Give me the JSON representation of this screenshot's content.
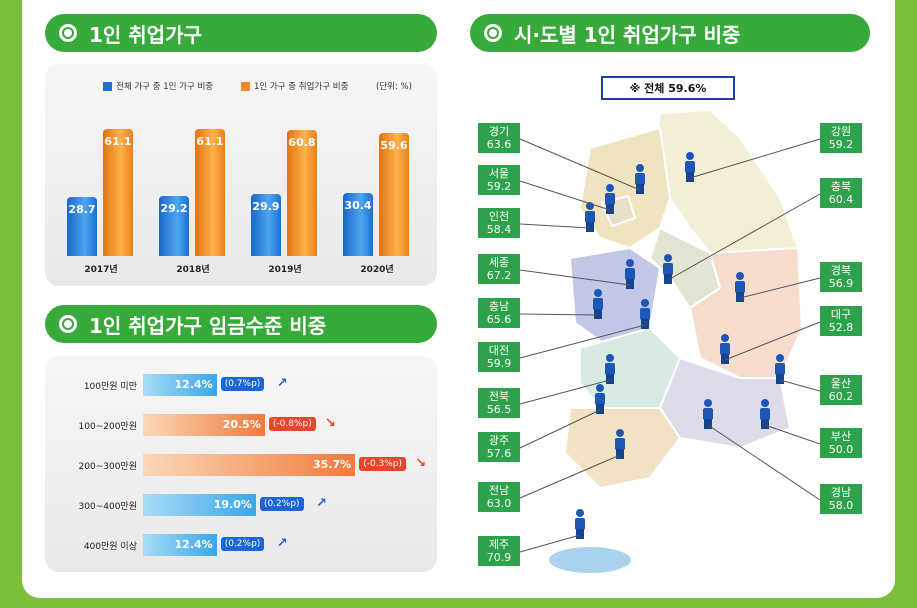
{
  "titles": {
    "section1": "1인 취업가구",
    "section2": "시·도별 1인 취업가구 비중",
    "section3": "1인 취업가구 임금수준 비중"
  },
  "colors": {
    "green": "#38a93b",
    "blue": "#1e66d6",
    "orange": "#f0872a",
    "region_box": "#2ca24a"
  },
  "chart_data": [
    {
      "type": "bar",
      "categories": [
        "2017년",
        "2018년",
        "2019년",
        "2020년"
      ],
      "series": [
        {
          "name": "전체 가구 중 1인 가구 비중",
          "values": [
            28.7,
            29.2,
            29.9,
            30.4
          ],
          "labels": [
            "28.7",
            "29.2",
            "29.9",
            "30.4"
          ]
        },
        {
          "name": "1인 가구 중 취업가구 비중",
          "values": [
            61.1,
            61.1,
            60.8,
            59.6
          ],
          "labels": [
            "61.1",
            "61.1",
            "60.8",
            "59.6"
          ]
        }
      ],
      "unit": "(단위: %)",
      "ylim": [
        0,
        70
      ],
      "legend": "top"
    },
    {
      "type": "bar",
      "orientation": "horizontal",
      "categories": [
        "100만원 미만",
        "100~200만원",
        "200~300만원",
        "300~400만원",
        "400만원 이상"
      ],
      "values": [
        12.4,
        20.5,
        35.7,
        19.0,
        12.4
      ],
      "value_labels": [
        "12.4%",
        "20.5%",
        "35.7%",
        "19.0%",
        "12.4%"
      ],
      "changes": [
        "(0.7%p)",
        "(-0.8%p)",
        "(-0.3%p)",
        "(0.2%p)",
        "(0.2%p)"
      ],
      "direction": [
        "up",
        "down",
        "down",
        "up",
        "up"
      ]
    },
    {
      "type": "table",
      "total": "※ 전체 59.6%",
      "regions": [
        {
          "name": "경기",
          "value": "63.6"
        },
        {
          "name": "서울",
          "value": "59.2"
        },
        {
          "name": "인천",
          "value": "58.4"
        },
        {
          "name": "세종",
          "value": "67.2"
        },
        {
          "name": "충남",
          "value": "65.6"
        },
        {
          "name": "대전",
          "value": "59.9"
        },
        {
          "name": "전북",
          "value": "56.5"
        },
        {
          "name": "광주",
          "value": "57.6"
        },
        {
          "name": "전남",
          "value": "63.0"
        },
        {
          "name": "제주",
          "value": "70.9"
        },
        {
          "name": "강원",
          "value": "59.2"
        },
        {
          "name": "충북",
          "value": "60.4"
        },
        {
          "name": "경북",
          "value": "56.9"
        },
        {
          "name": "대구",
          "value": "52.8"
        },
        {
          "name": "울산",
          "value": "60.2"
        },
        {
          "name": "부산",
          "value": "50.0"
        },
        {
          "name": "경남",
          "value": "58.0"
        }
      ]
    }
  ]
}
